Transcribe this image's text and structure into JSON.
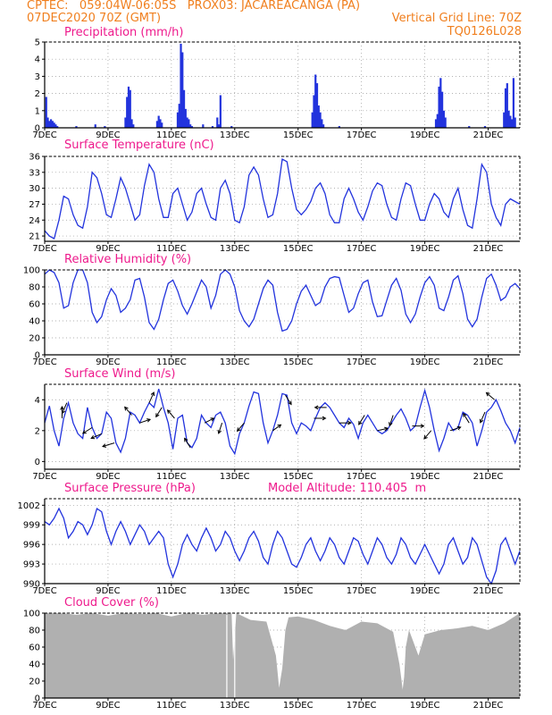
{
  "header": {
    "line1": "CPTEC:   059:04W-06:05S   PROX03: JACAREACANGA (PA)",
    "line2_left": "07DEC2020 70Z (GMT)",
    "line2_right": "Vertical Grid Line: 70Z",
    "line3_right": "TQ0126L028"
  },
  "colors": {
    "header": "#f07f1e",
    "title": "#ee1a8c",
    "line": "#2233dd",
    "cloud": "#b0b0b0"
  },
  "date_ticks": [
    "7DEC",
    "9DEC",
    "11DEC",
    "13DEC",
    "15DEC",
    "17DEC",
    "19DEC",
    "21DEC"
  ],
  "date_tick_days": [
    7,
    9,
    11,
    13,
    15,
    17,
    19,
    21
  ],
  "model_altitude": "Model Altitude: 110.405  m",
  "chart_data": [
    {
      "id": "precip",
      "type": "bar",
      "title": "Precipitation (mm/h)",
      "ylim": [
        0,
        5
      ],
      "yticks": [
        0,
        1,
        2,
        3,
        4,
        5
      ],
      "x_unit": "day of December 2020 (GMT)",
      "x": [
        7.05,
        7.1,
        7.15,
        7.2,
        7.25,
        7.3,
        7.35,
        7.4,
        8.0,
        8.6,
        8.9,
        9.55,
        9.6,
        9.65,
        9.7,
        9.75,
        9.8,
        10.55,
        10.6,
        10.65,
        10.7,
        11.2,
        11.25,
        11.3,
        11.35,
        11.4,
        11.45,
        11.5,
        11.55,
        11.6,
        11.65,
        12.0,
        12.3,
        12.45,
        12.5,
        12.55,
        12.9,
        15.45,
        15.5,
        15.55,
        15.6,
        15.65,
        15.7,
        15.75,
        15.8,
        16.3,
        19.35,
        19.4,
        19.45,
        19.5,
        19.55,
        19.6,
        19.65,
        20.4,
        20.9,
        21.5,
        21.55,
        21.6,
        21.65,
        21.7,
        21.75,
        21.8,
        21.85
      ],
      "values": [
        1.8,
        0.6,
        0.4,
        0.5,
        0.4,
        0.3,
        0.2,
        0.1,
        0.1,
        0.2,
        0.1,
        0.6,
        1.8,
        2.4,
        2.2,
        0.5,
        0.2,
        0.4,
        0.7,
        0.5,
        0.3,
        0.9,
        1.4,
        4.9,
        4.4,
        2.2,
        1.1,
        0.6,
        0.5,
        0.2,
        0.1,
        0.2,
        0.1,
        0.6,
        0.2,
        1.9,
        0.1,
        0.9,
        1.9,
        3.1,
        2.6,
        1.3,
        0.9,
        0.5,
        0.2,
        0.1,
        0.5,
        0.8,
        2.4,
        2.9,
        2.1,
        1.0,
        0.6,
        0.1,
        0.1,
        0.9,
        2.3,
        2.6,
        1.0,
        0.7,
        0.5,
        2.9,
        0.6
      ]
    },
    {
      "id": "temp",
      "type": "line",
      "title": "Surface Temperature (nC)",
      "ylim": [
        20,
        36
      ],
      "yticks": [
        21,
        24,
        27,
        30,
        33,
        36
      ],
      "x_unit": "day of December 2020 (GMT)",
      "x": [
        7,
        7.15,
        7.3,
        7.45,
        7.6,
        7.75,
        7.9,
        8.05,
        8.2,
        8.35,
        8.5,
        8.65,
        8.8,
        8.95,
        9.1,
        9.25,
        9.4,
        9.55,
        9.7,
        9.85,
        10,
        10.15,
        10.3,
        10.45,
        10.6,
        10.75,
        10.9,
        11.05,
        11.2,
        11.35,
        11.5,
        11.65,
        11.8,
        11.95,
        12.1,
        12.25,
        12.4,
        12.55,
        12.7,
        12.85,
        13,
        13.15,
        13.3,
        13.45,
        13.6,
        13.75,
        13.9,
        14.05,
        14.2,
        14.35,
        14.5,
        14.65,
        14.8,
        14.95,
        15.1,
        15.25,
        15.4,
        15.55,
        15.7,
        15.85,
        16,
        16.15,
        16.3,
        16.45,
        16.6,
        16.75,
        16.9,
        17.05,
        17.2,
        17.35,
        17.5,
        17.65,
        17.8,
        17.95,
        18.1,
        18.25,
        18.4,
        18.55,
        18.7,
        18.85,
        19,
        19.15,
        19.3,
        19.45,
        19.6,
        19.75,
        19.9,
        20.05,
        20.2,
        20.35,
        20.5,
        20.65,
        20.8,
        20.95,
        21.1,
        21.25,
        21.4,
        21.55,
        21.7,
        21.85,
        22
      ],
      "values": [
        22,
        21,
        20.5,
        24,
        28.5,
        28,
        25,
        23,
        22.5,
        26.5,
        33,
        32,
        29,
        25,
        24.5,
        28,
        32,
        30,
        27,
        24,
        25,
        30.5,
        34.5,
        33,
        28,
        24.5,
        24.5,
        29,
        30,
        27,
        24,
        25.5,
        29,
        30,
        27,
        24.5,
        24,
        30,
        31.5,
        29,
        24,
        23.5,
        26.5,
        32.5,
        34,
        32.5,
        28,
        24.5,
        25,
        29,
        35.5,
        35,
        30,
        26,
        25,
        26,
        27.5,
        30,
        31,
        29,
        25,
        23.5,
        23.5,
        28,
        30,
        28,
        25.5,
        24,
        26.5,
        29.5,
        31,
        30.5,
        27,
        24.5,
        24,
        28,
        31,
        30.5,
        27,
        24,
        24,
        27,
        29,
        28,
        25.5,
        24.5,
        28,
        30,
        26,
        23,
        22.5,
        28,
        34.5,
        33,
        27,
        24.5,
        23,
        27,
        28,
        27.5,
        27
      ]
    },
    {
      "id": "rh",
      "type": "line",
      "title": "Relative Humidity (%)",
      "ylim": [
        0,
        100
      ],
      "yticks": [
        0,
        20,
        40,
        60,
        80,
        100
      ],
      "x_unit": "day of December 2020 (GMT)",
      "x": [
        7,
        7.15,
        7.3,
        7.45,
        7.6,
        7.75,
        7.9,
        8.05,
        8.2,
        8.35,
        8.5,
        8.65,
        8.8,
        8.95,
        9.1,
        9.25,
        9.4,
        9.55,
        9.7,
        9.85,
        10,
        10.15,
        10.3,
        10.45,
        10.6,
        10.75,
        10.9,
        11.05,
        11.2,
        11.35,
        11.5,
        11.65,
        11.8,
        11.95,
        12.1,
        12.25,
        12.4,
        12.55,
        12.7,
        12.85,
        13,
        13.15,
        13.3,
        13.45,
        13.6,
        13.75,
        13.9,
        14.05,
        14.2,
        14.35,
        14.5,
        14.65,
        14.8,
        14.95,
        15.1,
        15.25,
        15.4,
        15.55,
        15.7,
        15.85,
        16,
        16.15,
        16.3,
        16.45,
        16.6,
        16.75,
        16.9,
        17.05,
        17.2,
        17.35,
        17.5,
        17.65,
        17.8,
        17.95,
        18.1,
        18.25,
        18.4,
        18.55,
        18.7,
        18.85,
        19,
        19.15,
        19.3,
        19.45,
        19.6,
        19.75,
        19.9,
        20.05,
        20.2,
        20.35,
        20.5,
        20.65,
        20.8,
        20.95,
        21.1,
        21.25,
        21.4,
        21.55,
        21.7,
        21.85,
        22
      ],
      "values": [
        95,
        100,
        97,
        85,
        55,
        58,
        85,
        100,
        100,
        85,
        50,
        38,
        45,
        65,
        78,
        70,
        50,
        55,
        65,
        88,
        90,
        68,
        38,
        30,
        42,
        65,
        84,
        88,
        75,
        58,
        48,
        60,
        74,
        88,
        80,
        55,
        70,
        95,
        100,
        95,
        80,
        52,
        40,
        33,
        42,
        60,
        78,
        88,
        82,
        50,
        28,
        30,
        40,
        60,
        75,
        82,
        70,
        58,
        62,
        80,
        90,
        92,
        91,
        70,
        50,
        55,
        72,
        85,
        88,
        62,
        45,
        46,
        64,
        82,
        90,
        76,
        48,
        38,
        48,
        68,
        85,
        92,
        82,
        55,
        52,
        68,
        88,
        93,
        72,
        42,
        33,
        42,
        68,
        90,
        95,
        82,
        64,
        68,
        80,
        84,
        78
      ]
    },
    {
      "id": "wind",
      "type": "line",
      "title": "Surface Wind (m/s)",
      "ylim": [
        -0.5,
        5
      ],
      "yticks": [
        0,
        2,
        4
      ],
      "x_unit": "day of December 2020 (GMT)",
      "x": [
        7,
        7.15,
        7.3,
        7.45,
        7.6,
        7.75,
        7.9,
        8.05,
        8.2,
        8.35,
        8.5,
        8.65,
        8.8,
        8.95,
        9.1,
        9.25,
        9.4,
        9.55,
        9.7,
        9.85,
        10,
        10.15,
        10.3,
        10.45,
        10.6,
        10.75,
        10.9,
        11.05,
        11.2,
        11.35,
        11.5,
        11.65,
        11.8,
        11.95,
        12.1,
        12.25,
        12.4,
        12.55,
        12.7,
        12.85,
        13,
        13.15,
        13.3,
        13.45,
        13.6,
        13.75,
        13.9,
        14.05,
        14.2,
        14.35,
        14.5,
        14.65,
        14.8,
        14.95,
        15.1,
        15.25,
        15.4,
        15.55,
        15.7,
        15.85,
        16,
        16.15,
        16.3,
        16.45,
        16.6,
        16.75,
        16.9,
        17.05,
        17.2,
        17.35,
        17.5,
        17.65,
        17.8,
        17.95,
        18.1,
        18.25,
        18.4,
        18.55,
        18.7,
        18.85,
        19,
        19.15,
        19.3,
        19.45,
        19.6,
        19.75,
        19.9,
        20.05,
        20.2,
        20.35,
        20.5,
        20.65,
        20.8,
        20.95,
        21.1,
        21.25,
        21.4,
        21.55,
        21.7,
        21.85,
        22
      ],
      "values": [
        2.5,
        3.6,
        2,
        1,
        2.8,
        3.8,
        2.5,
        1.8,
        1.5,
        3.5,
        2.2,
        1.5,
        1.8,
        3.2,
        2.8,
        1.2,
        0.6,
        1.5,
        3.2,
        3,
        2.5,
        3.2,
        3.8,
        3.5,
        4.7,
        3.5,
        2.5,
        0.8,
        2.8,
        3,
        1.2,
        0.9,
        1.5,
        3,
        2.5,
        2.2,
        3,
        3.2,
        2.5,
        1,
        0.5,
        1.8,
        2.5,
        3.6,
        4.5,
        4.4,
        2.5,
        1.2,
        2,
        3,
        4.4,
        4.3,
        2.5,
        1.8,
        2.5,
        2.3,
        2,
        2.8,
        3.5,
        3.8,
        3.5,
        3,
        2.5,
        2.2,
        2.8,
        2.4,
        1.5,
        2.5,
        3,
        2.5,
        2,
        1.8,
        2,
        2.5,
        3,
        3.4,
        2.8,
        2,
        2.3,
        3.5,
        4.6,
        3.5,
        2,
        0.7,
        1.5,
        2.5,
        2,
        2.2,
        3.2,
        3,
        2.5,
        1,
        2,
        3.2,
        3.5,
        4,
        3.3,
        2.5,
        2,
        1.2,
        2.2
      ],
      "vectors": [
        {
          "x": 7.55,
          "dx": 0,
          "dy": 1
        },
        {
          "x": 7.7,
          "dx": -0.4,
          "dy": -0.9
        },
        {
          "x": 8.5,
          "dx": -0.8,
          "dy": -0.5
        },
        {
          "x": 8.8,
          "dx": -0.9,
          "dy": -0.4
        },
        {
          "x": 9.2,
          "dx": -1,
          "dy": -0.3
        },
        {
          "x": 9.75,
          "dx": -0.6,
          "dy": 0.7
        },
        {
          "x": 10.0,
          "dx": 0.9,
          "dy": 0.3
        },
        {
          "x": 10.3,
          "dx": 0.4,
          "dy": 0.9
        },
        {
          "x": 10.7,
          "dx": -0.5,
          "dy": -0.8
        },
        {
          "x": 11.1,
          "dx": -0.6,
          "dy": 0.7
        },
        {
          "x": 11.6,
          "dx": -0.5,
          "dy": 0.8
        },
        {
          "x": 12.05,
          "dx": 0.8,
          "dy": 0.4
        },
        {
          "x": 12.6,
          "dx": -0.3,
          "dy": -0.9
        },
        {
          "x": 13.3,
          "dx": -0.6,
          "dy": -0.7
        },
        {
          "x": 14.2,
          "dx": 0.7,
          "dy": 0.5
        },
        {
          "x": 14.6,
          "dx": 0.5,
          "dy": -0.8
        },
        {
          "x": 15.5,
          "dx": 1,
          "dy": 0
        },
        {
          "x": 15.9,
          "dx": -1,
          "dy": 0
        },
        {
          "x": 16.3,
          "dx": 1,
          "dy": 0
        },
        {
          "x": 17.1,
          "dx": -0.5,
          "dy": -0.8
        },
        {
          "x": 17.5,
          "dx": 0.9,
          "dy": 0.2
        },
        {
          "x": 18.0,
          "dx": -0.3,
          "dy": -0.9
        },
        {
          "x": 18.6,
          "dx": 1,
          "dy": 0
        },
        {
          "x": 19.2,
          "dx": -0.6,
          "dy": -0.7
        },
        {
          "x": 19.8,
          "dx": 0.9,
          "dy": 0.3
        },
        {
          "x": 20.4,
          "dx": -0.5,
          "dy": 0.8
        },
        {
          "x": 20.9,
          "dx": -0.4,
          "dy": -0.9
        },
        {
          "x": 21.2,
          "dx": -0.7,
          "dy": 0.6
        }
      ]
    },
    {
      "id": "pres",
      "type": "line",
      "title": "Surface Pressure (hPa)",
      "ylim": [
        990,
        1003
      ],
      "yticks": [
        990,
        993,
        996,
        999,
        1002
      ],
      "x_unit": "day of December 2020 (GMT)",
      "x": [
        7,
        7.15,
        7.3,
        7.45,
        7.6,
        7.75,
        7.9,
        8.05,
        8.2,
        8.35,
        8.5,
        8.65,
        8.8,
        8.95,
        9.1,
        9.25,
        9.4,
        9.55,
        9.7,
        9.85,
        10,
        10.15,
        10.3,
        10.45,
        10.6,
        10.75,
        10.9,
        11.05,
        11.2,
        11.35,
        11.5,
        11.65,
        11.8,
        11.95,
        12.1,
        12.25,
        12.4,
        12.55,
        12.7,
        12.85,
        13,
        13.15,
        13.3,
        13.45,
        13.6,
        13.75,
        13.9,
        14.05,
        14.2,
        14.35,
        14.5,
        14.65,
        14.8,
        14.95,
        15.1,
        15.25,
        15.4,
        15.55,
        15.7,
        15.85,
        16,
        16.15,
        16.3,
        16.45,
        16.6,
        16.75,
        16.9,
        17.05,
        17.2,
        17.35,
        17.5,
        17.65,
        17.8,
        17.95,
        18.1,
        18.25,
        18.4,
        18.55,
        18.7,
        18.85,
        19,
        19.15,
        19.3,
        19.45,
        19.6,
        19.75,
        19.9,
        20.05,
        20.2,
        20.35,
        20.5,
        20.65,
        20.8,
        20.95,
        21.1,
        21.25,
        21.4,
        21.55,
        21.7,
        21.85,
        22
      ],
      "values": [
        999.5,
        999,
        1000,
        1001.5,
        1000,
        997,
        998,
        999.5,
        999,
        997.5,
        999,
        1001.5,
        1001,
        998,
        996,
        998,
        999.5,
        998,
        996,
        997.5,
        999,
        998,
        996,
        997,
        998,
        997,
        993,
        991,
        993,
        996,
        997.5,
        996,
        995,
        997,
        998.5,
        997,
        995,
        996,
        998,
        997,
        995,
        993.5,
        995,
        997,
        998,
        996.5,
        994,
        993,
        996,
        998,
        997,
        995,
        993,
        992.5,
        994,
        996,
        997,
        995,
        993.5,
        995,
        997,
        996,
        994,
        993,
        995,
        997,
        996.5,
        994.5,
        993,
        995,
        997,
        996,
        994,
        993,
        994.5,
        997,
        996,
        994,
        993,
        994.5,
        996,
        994.5,
        993,
        991.5,
        993,
        996,
        997,
        995,
        993,
        994,
        997,
        996,
        993.5,
        991,
        990,
        992,
        996,
        997,
        995,
        993,
        995
      ]
    },
    {
      "id": "cloud",
      "type": "area",
      "title": "Cloud Cover (%)",
      "ylim": [
        0,
        100
      ],
      "yticks": [
        0,
        20,
        40,
        60,
        80,
        100
      ],
      "x_unit": "day of December 2020 (GMT)",
      "x": [
        7,
        7.5,
        8,
        8.5,
        9,
        9.5,
        10,
        10.5,
        11,
        11.5,
        12,
        12.5,
        12.9,
        12.95,
        13.05,
        13.5,
        14,
        14.3,
        14.4,
        14.5,
        14.6,
        14.7,
        15,
        15.5,
        16,
        16.5,
        17,
        17.5,
        18,
        18.2,
        18.3,
        18.35,
        18.4,
        18.5,
        18.8,
        19,
        19.5,
        20,
        20.5,
        21,
        21.5,
        22
      ],
      "values": [
        100,
        100,
        98,
        100,
        97,
        100,
        99,
        100,
        96,
        100,
        98,
        100,
        100,
        45,
        100,
        92,
        90,
        50,
        12,
        35,
        80,
        95,
        96,
        92,
        85,
        80,
        90,
        88,
        78,
        40,
        10,
        25,
        60,
        80,
        50,
        75,
        80,
        82,
        85,
        80,
        88,
        100
      ]
    }
  ]
}
